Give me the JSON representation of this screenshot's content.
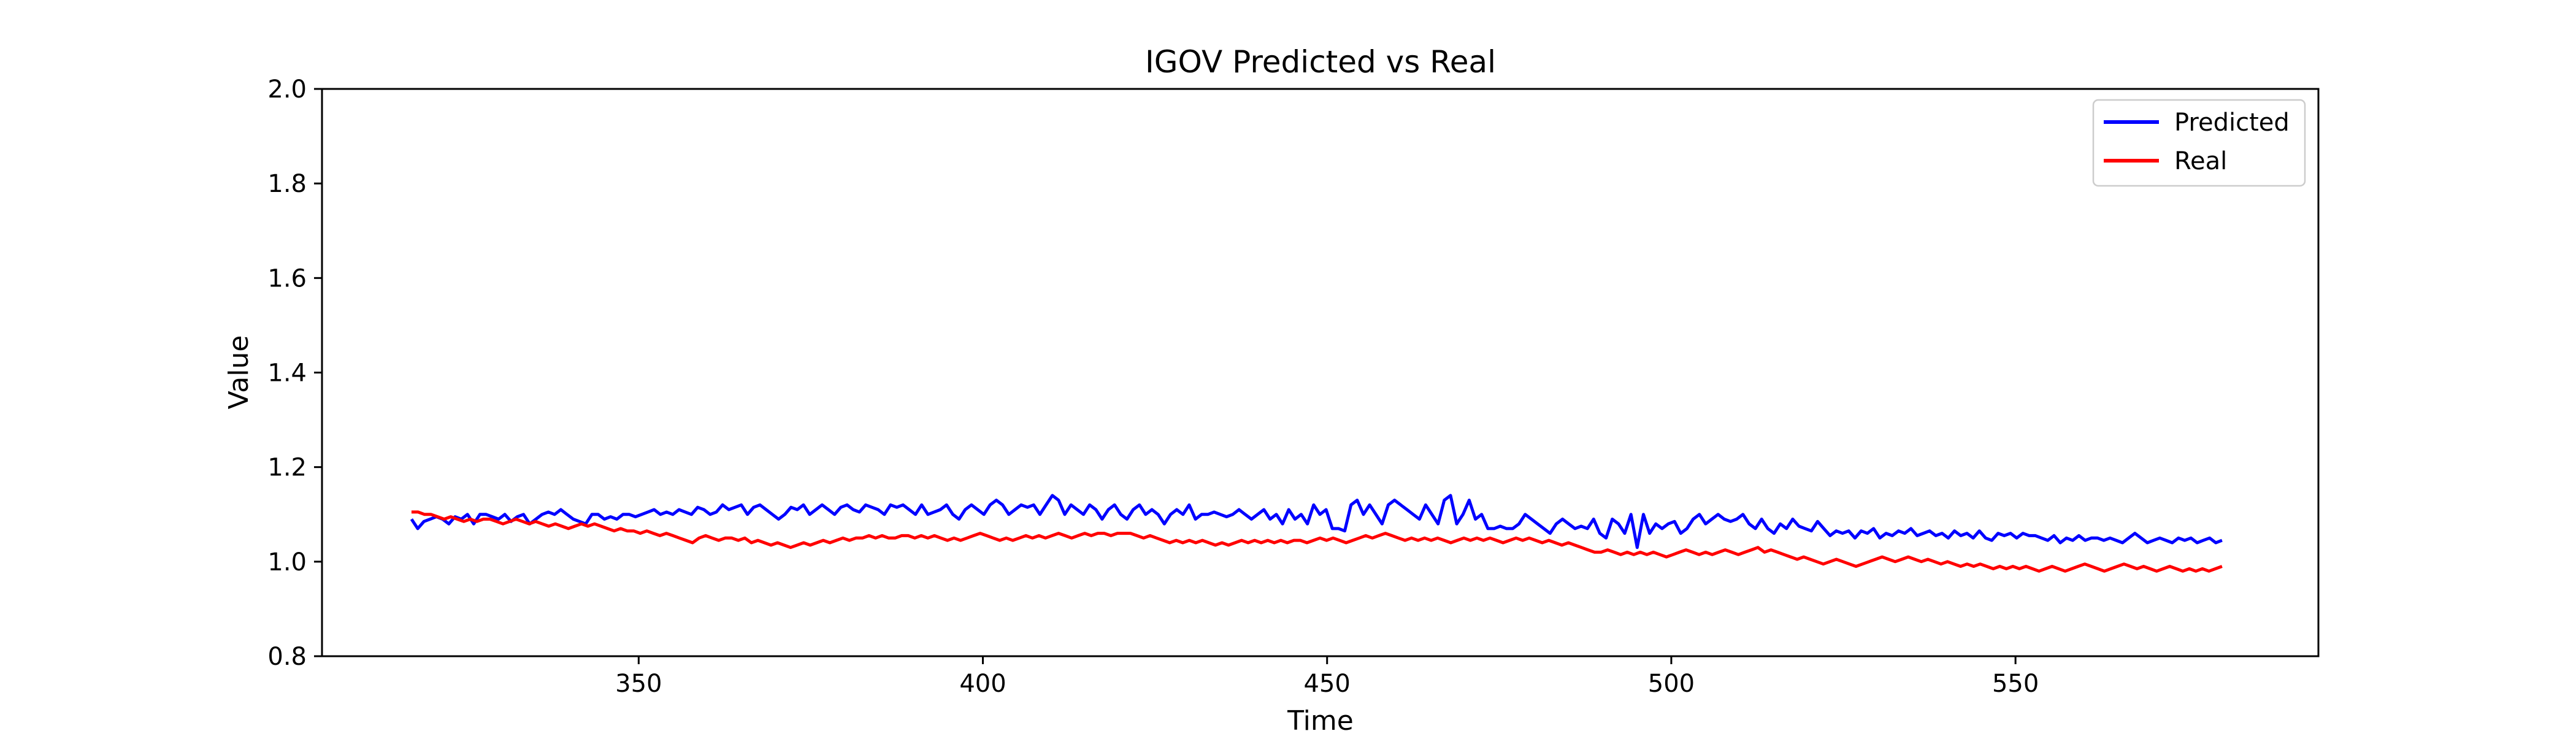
{
  "chart_data": {
    "type": "line",
    "title": "IGOV Predicted vs Real",
    "xlabel": "Time",
    "ylabel": "Value",
    "xlim": [
      304,
      594
    ],
    "ylim": [
      0.8,
      2.0
    ],
    "x_ticks": [
      350,
      400,
      450,
      500,
      550
    ],
    "y_ticks": [
      0.8,
      1.0,
      1.2,
      1.4,
      1.6,
      1.8,
      2.0
    ],
    "x_tick_labels": [
      "350",
      "400",
      "450",
      "500",
      "550"
    ],
    "y_tick_labels": [
      "0.8",
      "1.0",
      "1.2",
      "1.4",
      "1.6",
      "1.8",
      "2.0"
    ],
    "grid": false,
    "legend_position": "top-right",
    "x_start": 317,
    "x_end": 580,
    "series": [
      {
        "name": "Predicted",
        "color": "#0000ff",
        "values": [
          1.09,
          1.07,
          1.085,
          1.09,
          1.095,
          1.09,
          1.08,
          1.095,
          1.09,
          1.1,
          1.08,
          1.1,
          1.1,
          1.095,
          1.09,
          1.1,
          1.085,
          1.095,
          1.1,
          1.08,
          1.09,
          1.1,
          1.105,
          1.1,
          1.11,
          1.1,
          1.09,
          1.085,
          1.08,
          1.1,
          1.1,
          1.09,
          1.095,
          1.09,
          1.1,
          1.1,
          1.095,
          1.1,
          1.105,
          1.11,
          1.1,
          1.105,
          1.1,
          1.11,
          1.105,
          1.1,
          1.115,
          1.11,
          1.1,
          1.105,
          1.12,
          1.11,
          1.115,
          1.12,
          1.1,
          1.115,
          1.12,
          1.11,
          1.1,
          1.09,
          1.1,
          1.115,
          1.11,
          1.12,
          1.1,
          1.11,
          1.12,
          1.11,
          1.1,
          1.115,
          1.12,
          1.11,
          1.105,
          1.12,
          1.115,
          1.11,
          1.1,
          1.12,
          1.115,
          1.12,
          1.11,
          1.1,
          1.12,
          1.1,
          1.105,
          1.11,
          1.12,
          1.1,
          1.09,
          1.11,
          1.12,
          1.11,
          1.1,
          1.12,
          1.13,
          1.12,
          1.1,
          1.11,
          1.12,
          1.115,
          1.12,
          1.1,
          1.12,
          1.14,
          1.13,
          1.1,
          1.12,
          1.11,
          1.1,
          1.12,
          1.11,
          1.09,
          1.11,
          1.12,
          1.1,
          1.09,
          1.11,
          1.12,
          1.1,
          1.11,
          1.1,
          1.08,
          1.1,
          1.11,
          1.1,
          1.12,
          1.09,
          1.1,
          1.1,
          1.105,
          1.1,
          1.095,
          1.1,
          1.11,
          1.1,
          1.09,
          1.1,
          1.11,
          1.09,
          1.1,
          1.08,
          1.11,
          1.09,
          1.1,
          1.08,
          1.12,
          1.1,
          1.11,
          1.07,
          1.07,
          1.065,
          1.12,
          1.13,
          1.1,
          1.12,
          1.1,
          1.08,
          1.12,
          1.13,
          1.12,
          1.11,
          1.1,
          1.09,
          1.12,
          1.1,
          1.08,
          1.13,
          1.14,
          1.08,
          1.1,
          1.13,
          1.09,
          1.1,
          1.07,
          1.07,
          1.075,
          1.07,
          1.07,
          1.08,
          1.1,
          1.09,
          1.08,
          1.07,
          1.06,
          1.08,
          1.09,
          1.08,
          1.07,
          1.075,
          1.07,
          1.09,
          1.06,
          1.05,
          1.09,
          1.08,
          1.06,
          1.1,
          1.03,
          1.1,
          1.06,
          1.08,
          1.07,
          1.08,
          1.085,
          1.06,
          1.07,
          1.09,
          1.1,
          1.08,
          1.09,
          1.1,
          1.09,
          1.085,
          1.09,
          1.1,
          1.08,
          1.07,
          1.09,
          1.07,
          1.06,
          1.08,
          1.07,
          1.09,
          1.075,
          1.07,
          1.065,
          1.085,
          1.07,
          1.055,
          1.065,
          1.06,
          1.065,
          1.05,
          1.065,
          1.06,
          1.07,
          1.05,
          1.06,
          1.055,
          1.065,
          1.06,
          1.07,
          1.055,
          1.06,
          1.065,
          1.055,
          1.06,
          1.05,
          1.065,
          1.055,
          1.06,
          1.05,
          1.065,
          1.05,
          1.045,
          1.06,
          1.055,
          1.06,
          1.05,
          1.06,
          1.055,
          1.055,
          1.05,
          1.045,
          1.055,
          1.04,
          1.05,
          1.045,
          1.055,
          1.045,
          1.05,
          1.05,
          1.045,
          1.05,
          1.045,
          1.04,
          1.05,
          1.06,
          1.05,
          1.04,
          1.045,
          1.05,
          1.045,
          1.04,
          1.05,
          1.045,
          1.05,
          1.04,
          1.045,
          1.05,
          1.04,
          1.045
        ]
      },
      {
        "name": "Real",
        "color": "#ff0000",
        "values": [
          1.105,
          1.105,
          1.1,
          1.1,
          1.095,
          1.09,
          1.095,
          1.09,
          1.085,
          1.09,
          1.085,
          1.09,
          1.09,
          1.085,
          1.08,
          1.085,
          1.09,
          1.085,
          1.08,
          1.085,
          1.08,
          1.075,
          1.08,
          1.075,
          1.07,
          1.075,
          1.08,
          1.075,
          1.08,
          1.075,
          1.07,
          1.065,
          1.07,
          1.065,
          1.065,
          1.06,
          1.065,
          1.06,
          1.055,
          1.06,
          1.055,
          1.05,
          1.045,
          1.04,
          1.05,
          1.055,
          1.05,
          1.045,
          1.05,
          1.05,
          1.045,
          1.05,
          1.04,
          1.045,
          1.04,
          1.035,
          1.04,
          1.035,
          1.03,
          1.035,
          1.04,
          1.035,
          1.04,
          1.045,
          1.04,
          1.045,
          1.05,
          1.045,
          1.05,
          1.05,
          1.055,
          1.05,
          1.055,
          1.05,
          1.05,
          1.055,
          1.055,
          1.05,
          1.055,
          1.05,
          1.055,
          1.05,
          1.045,
          1.05,
          1.045,
          1.05,
          1.055,
          1.06,
          1.055,
          1.05,
          1.045,
          1.05,
          1.045,
          1.05,
          1.055,
          1.05,
          1.055,
          1.05,
          1.055,
          1.06,
          1.055,
          1.05,
          1.055,
          1.06,
          1.055,
          1.06,
          1.06,
          1.055,
          1.06,
          1.06,
          1.06,
          1.055,
          1.05,
          1.055,
          1.05,
          1.045,
          1.04,
          1.045,
          1.04,
          1.045,
          1.04,
          1.045,
          1.04,
          1.035,
          1.04,
          1.035,
          1.04,
          1.045,
          1.04,
          1.045,
          1.04,
          1.045,
          1.04,
          1.045,
          1.04,
          1.045,
          1.045,
          1.04,
          1.045,
          1.05,
          1.045,
          1.05,
          1.045,
          1.04,
          1.045,
          1.05,
          1.055,
          1.05,
          1.055,
          1.06,
          1.055,
          1.05,
          1.045,
          1.05,
          1.045,
          1.05,
          1.045,
          1.05,
          1.045,
          1.04,
          1.045,
          1.05,
          1.045,
          1.05,
          1.045,
          1.05,
          1.045,
          1.04,
          1.045,
          1.05,
          1.045,
          1.05,
          1.045,
          1.04,
          1.045,
          1.04,
          1.035,
          1.04,
          1.035,
          1.03,
          1.025,
          1.02,
          1.02,
          1.025,
          1.02,
          1.015,
          1.02,
          1.015,
          1.02,
          1.015,
          1.02,
          1.015,
          1.01,
          1.015,
          1.02,
          1.025,
          1.02,
          1.015,
          1.02,
          1.015,
          1.02,
          1.025,
          1.02,
          1.015,
          1.02,
          1.025,
          1.03,
          1.02,
          1.025,
          1.02,
          1.015,
          1.01,
          1.005,
          1.01,
          1.005,
          1.0,
          0.995,
          1.0,
          1.005,
          1.0,
          0.995,
          0.99,
          0.995,
          1.0,
          1.005,
          1.01,
          1.005,
          1.0,
          1.005,
          1.01,
          1.005,
          1.0,
          1.005,
          1.0,
          0.995,
          1.0,
          0.995,
          0.99,
          0.995,
          0.99,
          0.995,
          0.99,
          0.985,
          0.99,
          0.985,
          0.99,
          0.985,
          0.99,
          0.985,
          0.98,
          0.985,
          0.99,
          0.985,
          0.98,
          0.985,
          0.99,
          0.995,
          0.99,
          0.985,
          0.98,
          0.985,
          0.99,
          0.995,
          0.99,
          0.985,
          0.99,
          0.985,
          0.98,
          0.985,
          0.99,
          0.985,
          0.98,
          0.985,
          0.98,
          0.985,
          0.98,
          0.985,
          0.99
        ]
      }
    ]
  }
}
